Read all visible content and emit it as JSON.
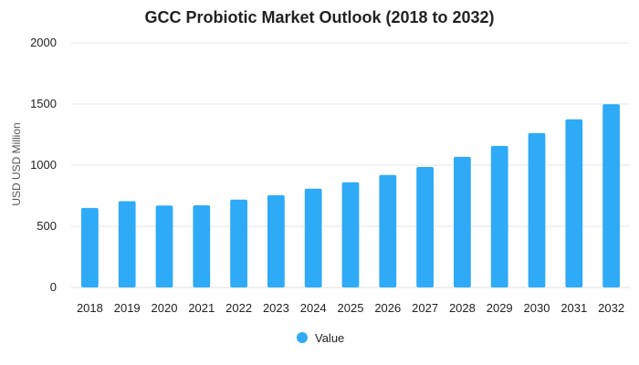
{
  "chart_data": {
    "type": "bar",
    "title": "GCC Probiotic Market Outlook (2018 to 2032)",
    "xlabel": "",
    "ylabel": "USD USD Million",
    "ylim": [
      0,
      2000
    ],
    "yticks": [
      "0",
      "500",
      "1000",
      "1500",
      "2000"
    ],
    "categories": [
      "2018",
      "2019",
      "2020",
      "2021",
      "2022",
      "2023",
      "2024",
      "2025",
      "2026",
      "2027",
      "2028",
      "2029",
      "2030",
      "2031",
      "2032"
    ],
    "series": [
      {
        "name": "Value",
        "values": [
          650,
          705,
          670,
          672,
          718,
          755,
          808,
          860,
          920,
          985,
          1068,
          1158,
          1262,
          1375,
          1498
        ]
      }
    ],
    "grid": true,
    "legend_position": "bottom-center",
    "colors": {
      "bar": "#2eaaf7",
      "grid": "#e6e6e6"
    }
  }
}
